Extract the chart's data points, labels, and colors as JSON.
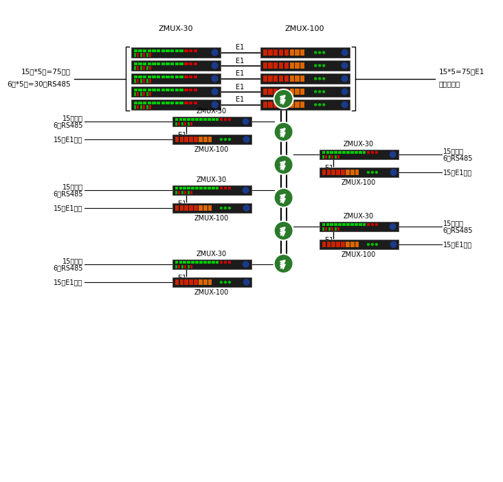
{
  "bg_color": "#ffffff",
  "device_dark": "#1c1c1c",
  "device_border": "#555555",
  "green_color": "#2a7a2a",
  "line_color": "#000000",
  "text_color": "#000000",
  "top_zmux30_label": "ZMUX-30",
  "top_zmux100_label": "ZMUX-100",
  "e1_label": "E1",
  "left_text1": "15路*5站=75电话",
  "left_text2": "6路*5站=30路RS485",
  "right_text1": "15*5=75路E1",
  "right_text2": "传视频监控",
  "label_phone": "15路电话",
  "label_rs485": "6路RS485",
  "label_e1port": "15路E1接口",
  "zmux30": "ZMUX-30",
  "zmux100": "ZMUX-100"
}
